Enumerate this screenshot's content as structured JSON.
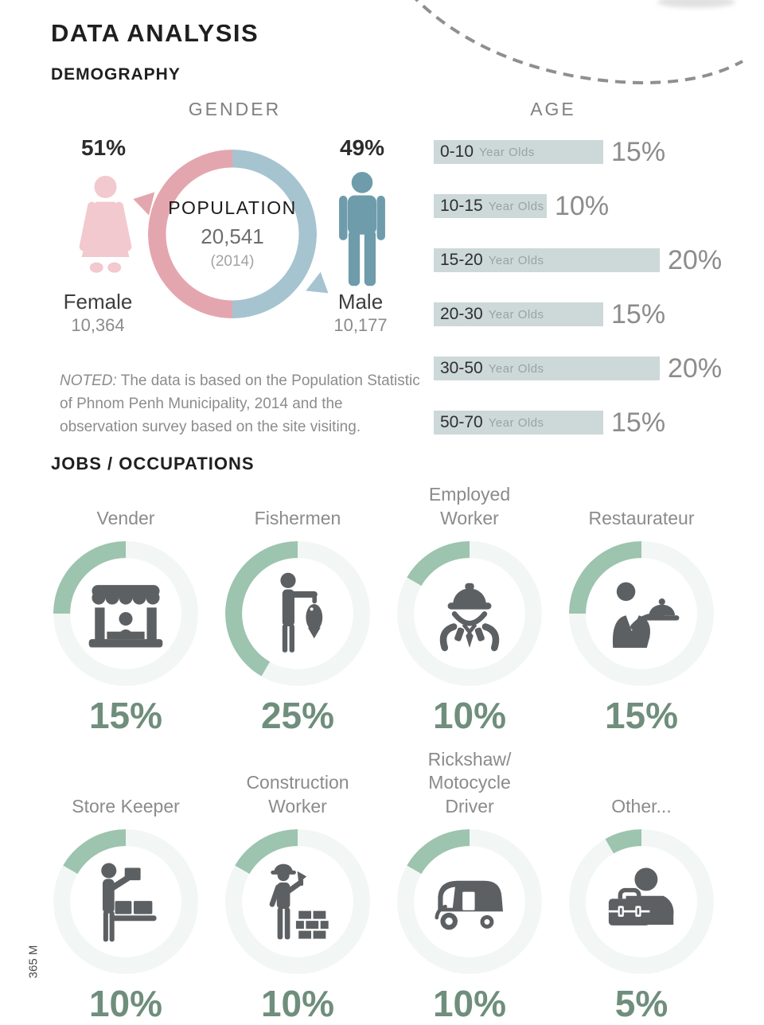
{
  "page": {
    "title": "DATA ANALYSIS",
    "section_demography": "DEMOGRAPHY",
    "section_jobs": "JOBS / OCCUPATIONS",
    "side_label": "365 M"
  },
  "colors": {
    "female_icon": "#f2c9ce",
    "female_ring": "#e4a6ae",
    "male_icon": "#6e9cab",
    "male_ring": "#a6c3d0",
    "age_bar": "#cdd8d8",
    "job_arc": "#9cc4ae",
    "job_ring_bg": "#f2f6f5",
    "job_pct_green": "#6f8e7c",
    "icon_gray": "#5d6062"
  },
  "gender": {
    "heading": "GENDER",
    "female": {
      "pct": "51%",
      "label": "Female",
      "count": "10,364"
    },
    "male": {
      "pct": "49%",
      "label": "Male",
      "count": "10,177"
    },
    "center": {
      "line1": "POPULATION",
      "line2": "20,541",
      "line3": "(2014)"
    }
  },
  "age": {
    "heading": "AGE",
    "suffix": "Year Olds",
    "bars": [
      {
        "range": "0-10",
        "suffix": "Year Olds",
        "pct": 15,
        "pct_label": "15%"
      },
      {
        "range": "10-15",
        "suffix": "Year Olds",
        "pct": 10,
        "pct_label": "10%"
      },
      {
        "range": "15-20",
        "suffix": "Year Olds",
        "pct": 20,
        "pct_label": "20%"
      },
      {
        "range": "20-30",
        "suffix": "Year Olds",
        "pct": 15,
        "pct_label": "15%"
      },
      {
        "range": "30-50",
        "suffix": "Year Olds",
        "pct": 20,
        "pct_label": "20%"
      },
      {
        "range": "50-70",
        "suffix": "Year Olds",
        "pct": 15,
        "pct_label": "15%"
      }
    ]
  },
  "note": {
    "prefix": "NOTED:",
    "text": " The data is based on the Population Statistic of Phnom Penh Municipality, 2014 and the observation survey based on the site visiting."
  },
  "jobs": {
    "items": [
      {
        "title": "Vender",
        "pct": 15,
        "pct_label": "15%",
        "icon": "market-stall-icon"
      },
      {
        "title": "Fishermen",
        "pct": 25,
        "pct_label": "25%",
        "icon": "fisherman-icon"
      },
      {
        "title": "Employed\nWorker",
        "pct": 10,
        "pct_label": "10%",
        "icon": "employed-worker-icon"
      },
      {
        "title": "Restaurateur",
        "pct": 15,
        "pct_label": "15%",
        "icon": "waiter-icon"
      },
      {
        "title": "Store Keeper",
        "pct": 10,
        "pct_label": "10%",
        "icon": "store-keeper-icon"
      },
      {
        "title": "Construction\nWorker",
        "pct": 10,
        "pct_label": "10%",
        "icon": "construction-worker-icon"
      },
      {
        "title": "Rickshaw/\nMotocycle\nDriver",
        "pct": 10,
        "pct_label": "10%",
        "icon": "rickshaw-icon"
      },
      {
        "title": "Other...",
        "pct": 5,
        "pct_label": "5%",
        "icon": "briefcase-person-icon"
      }
    ]
  },
  "chart_data": [
    {
      "type": "pie",
      "title": "GENDER",
      "labels": [
        "Female",
        "Male"
      ],
      "values": [
        51,
        49
      ],
      "counts": [
        10364,
        10177
      ],
      "center_annotation": "POPULATION 20,541 (2014)",
      "colors": [
        "#e4a6ae",
        "#a6c3d0"
      ]
    },
    {
      "type": "bar",
      "title": "AGE",
      "categories": [
        "0-10 Year Olds",
        "10-15 Year Olds",
        "15-20 Year Olds",
        "20-30 Year Olds",
        "30-50 Year Olds",
        "50-70 Year Olds"
      ],
      "values": [
        15,
        10,
        20,
        15,
        20,
        15
      ],
      "unit": "%",
      "orientation": "horizontal",
      "bar_color": "#cdd8d8",
      "value_labels": [
        "15%",
        "10%",
        "20%",
        "15%",
        "20%",
        "15%"
      ]
    },
    {
      "type": "pie",
      "subtype": "donut-grid",
      "title": "JOBS / OCCUPATIONS",
      "categories": [
        "Vender",
        "Fishermen",
        "Employed Worker",
        "Restaurateur",
        "Store Keeper",
        "Construction Worker",
        "Rickshaw/Motocycle Driver",
        "Other..."
      ],
      "values": [
        15,
        25,
        10,
        15,
        10,
        10,
        10,
        5
      ],
      "unit": "%",
      "arc_color": "#9cc4ae"
    }
  ]
}
